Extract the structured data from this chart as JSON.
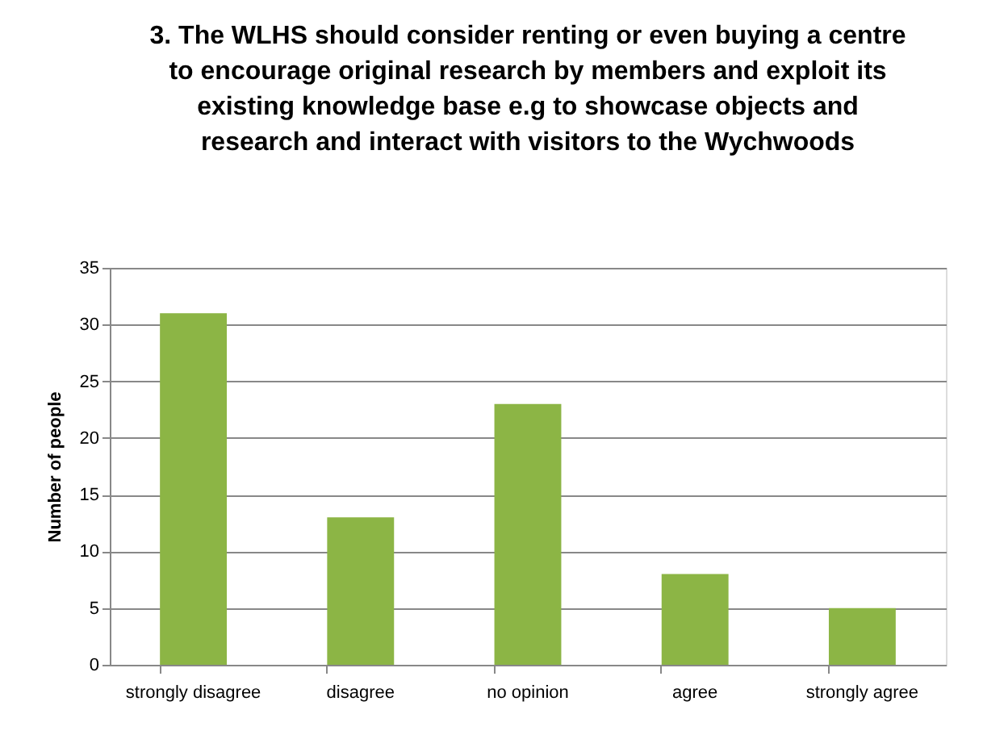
{
  "chart_data": {
    "type": "bar",
    "title": [
      "3. The WLHS should consider renting or even buying a centre",
      "to encourage original research by members and exploit its",
      "existing knowledge base e.g to showcase objects and",
      "research and interact with visitors to the Wychwoods"
    ],
    "ylabel": "Number of people",
    "categories": [
      "strongly disagree",
      "disagree",
      "no opinion",
      "agree",
      "strongly agree"
    ],
    "values": [
      31,
      13,
      23,
      8,
      5
    ],
    "color": "#8cb545",
    "ylim": [
      0,
      35
    ],
    "yticks": [
      0,
      5,
      10,
      15,
      20,
      25,
      30,
      35
    ],
    "grid": "y"
  }
}
